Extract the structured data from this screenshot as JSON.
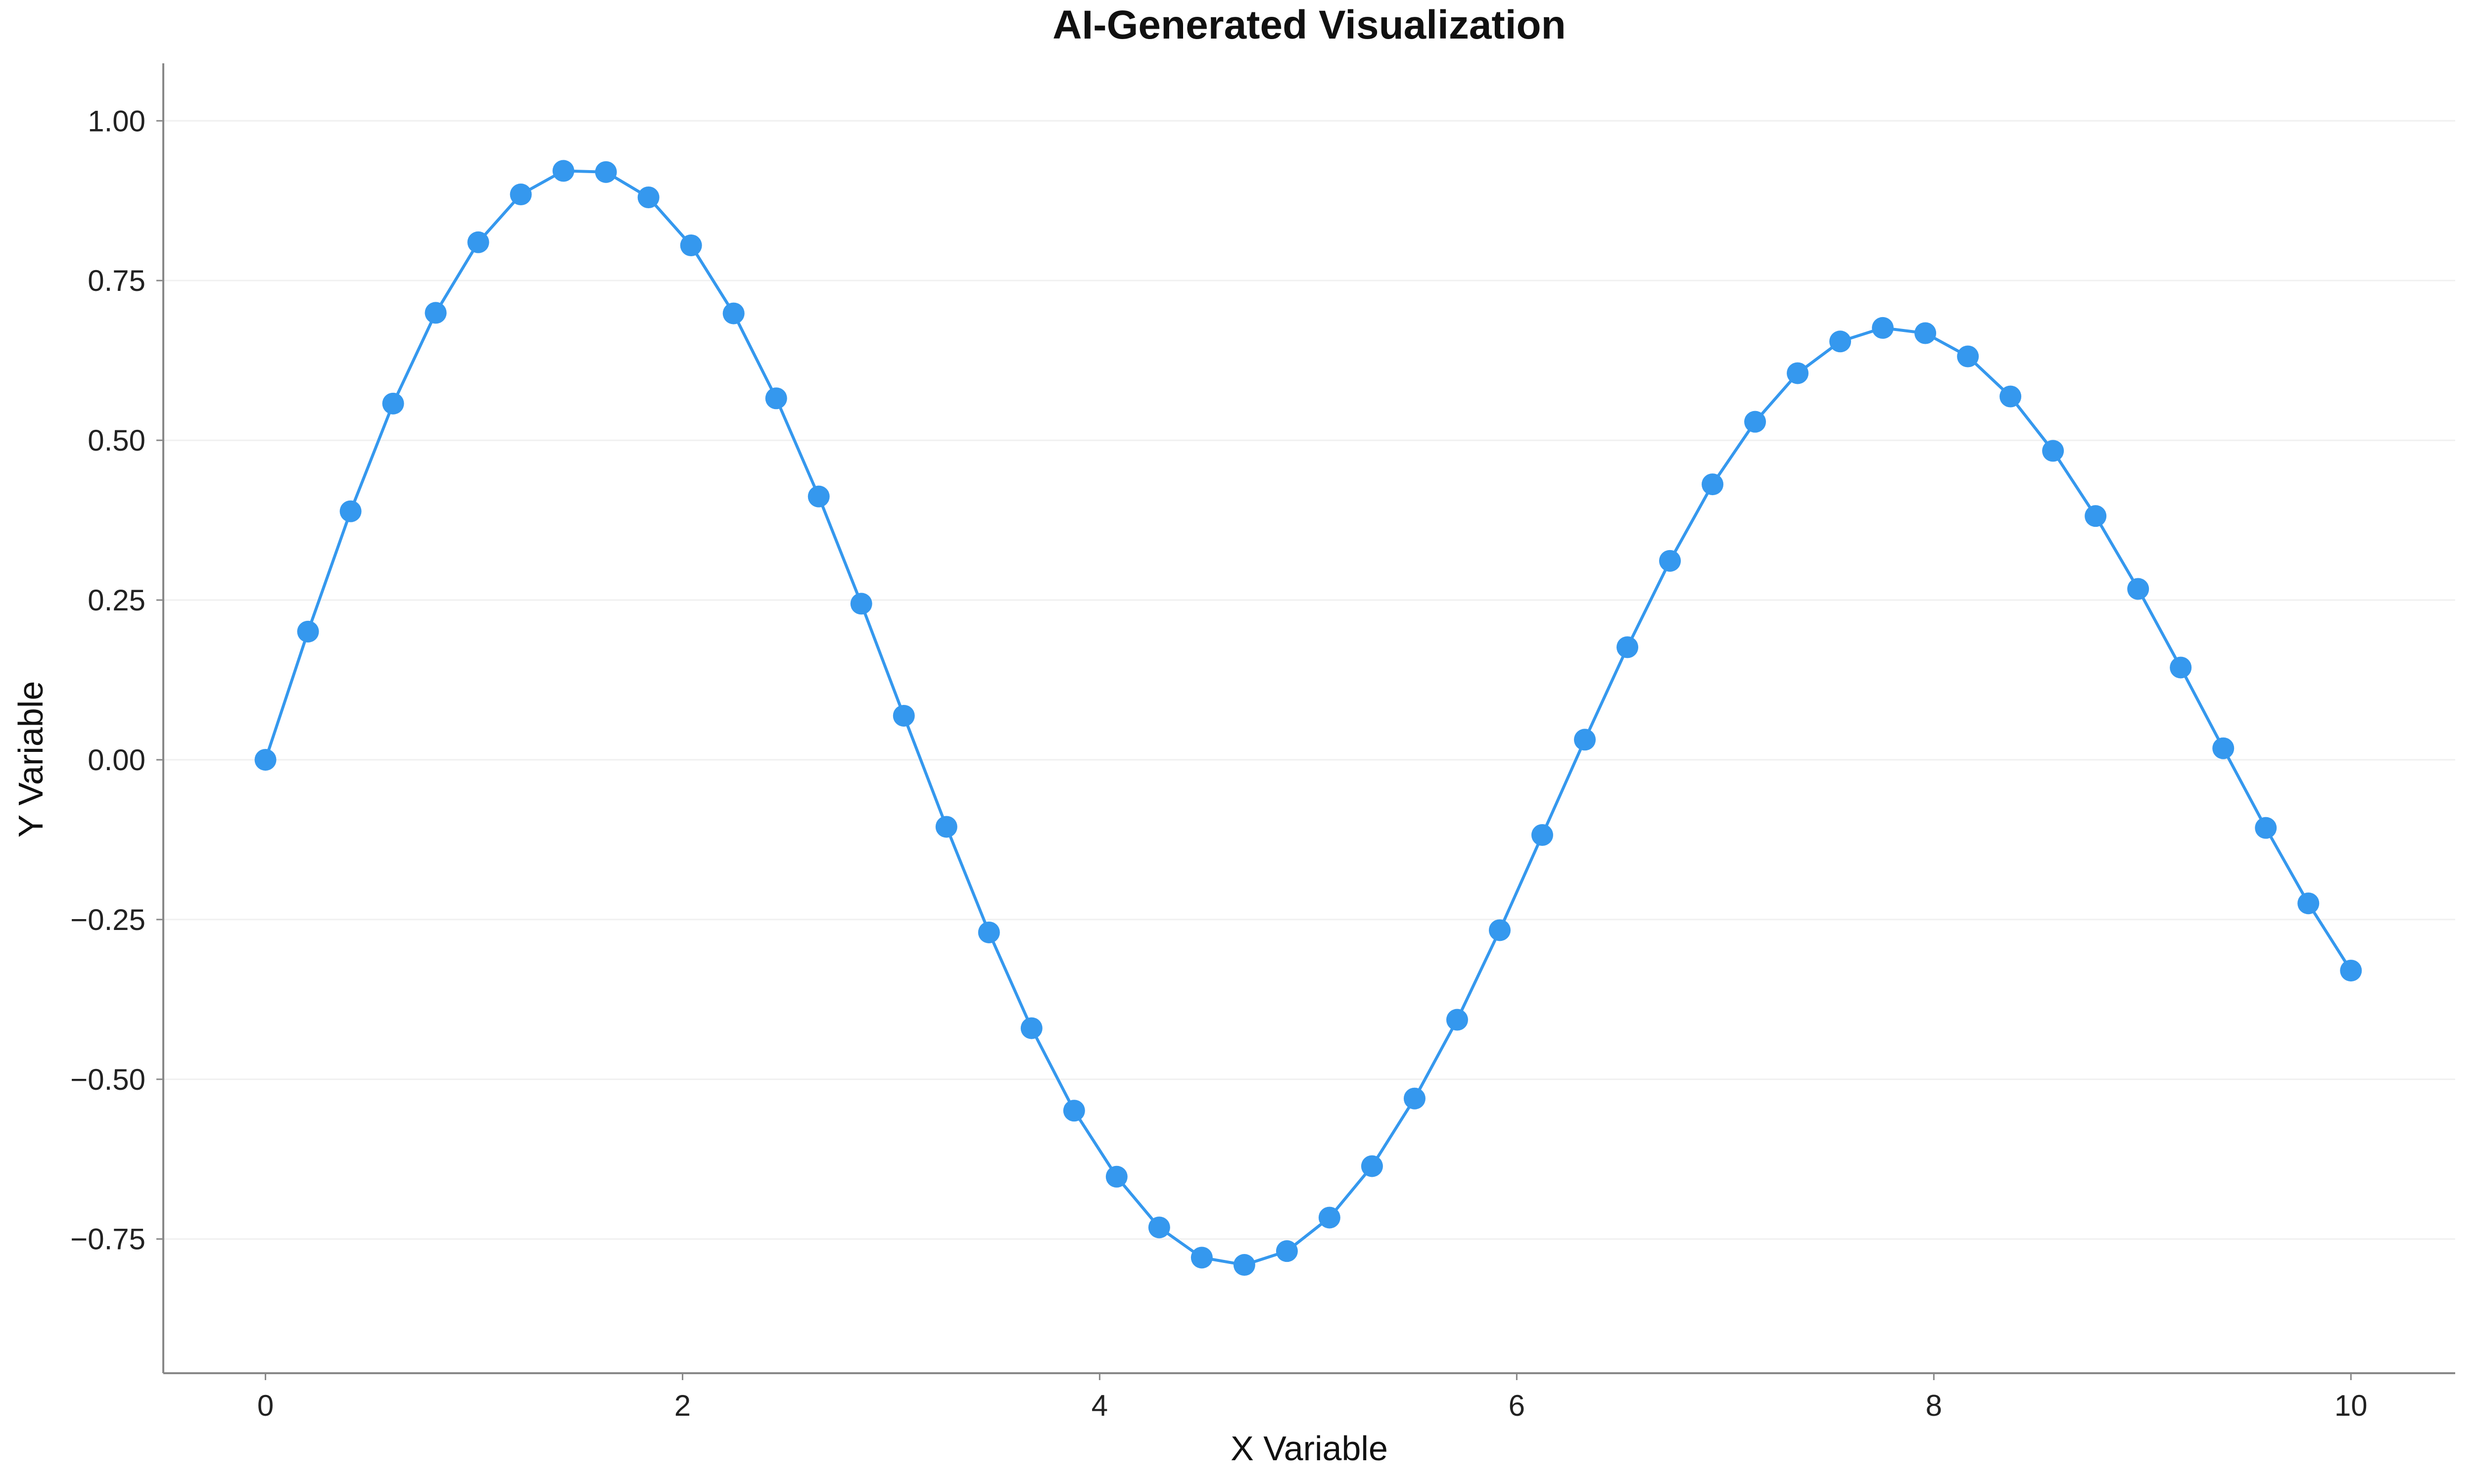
{
  "chart_data": {
    "type": "line",
    "title": "AI-Generated Visualization",
    "xlabel": "X Variable",
    "ylabel": "Y Variable",
    "xlim": [
      -0.49,
      10.5
    ],
    "ylim": [
      -0.96,
      1.09
    ],
    "grid": "horizontal",
    "legend": "none",
    "color": "#3598ee",
    "xticks": [
      0,
      2,
      4,
      6,
      8,
      10
    ],
    "xtick_labels": [
      "0",
      "2",
      "4",
      "6",
      "8",
      "10"
    ],
    "yticks": [
      -0.75,
      -0.5,
      -0.25,
      0,
      0.25,
      0.5,
      0.75,
      1.0
    ],
    "ytick_labels": [
      "−0.75",
      "−0.50",
      "−0.25",
      "0.00",
      "0.25",
      "0.50",
      "0.75",
      "1.00"
    ],
    "series": [
      {
        "name": "Y Variable",
        "x": [
          0,
          0.2041,
          0.4082,
          0.6122,
          0.8163,
          1.0204,
          1.2245,
          1.4286,
          1.6327,
          1.8367,
          2.0408,
          2.2449,
          2.449,
          2.6531,
          2.8571,
          3.0612,
          3.2653,
          3.4694,
          3.6735,
          3.8776,
          4.0816,
          4.2857,
          4.4898,
          4.6939,
          4.898,
          5.102,
          5.3061,
          5.5102,
          5.7143,
          5.9184,
          6.1224,
          6.3265,
          6.5306,
          6.7347,
          6.9388,
          7.1429,
          7.3469,
          7.551,
          7.7551,
          7.9592,
          8.1633,
          8.3673,
          8.5714,
          8.7755,
          8.9796,
          9.1837,
          9.3878,
          9.5918,
          9.7959,
          10
        ],
        "y": [
          0,
          0.2006,
          0.3889,
          0.5575,
          0.6995,
          0.8099,
          0.8848,
          0.9217,
          0.9198,
          0.8802,
          0.8051,
          0.6986,
          0.5657,
          0.4121,
          0.2443,
          0.0689,
          -0.1049,
          -0.2702,
          -0.4201,
          -0.5491,
          -0.6525,
          -0.7319,
          -0.7791,
          -0.7905,
          -0.7689,
          -0.7165,
          -0.636,
          -0.5301,
          -0.4069,
          -0.2667,
          -0.1177,
          0.0315,
          0.1762,
          0.3113,
          0.4311,
          0.529,
          0.605,
          0.6547,
          0.6759,
          0.6677,
          0.6313,
          0.5686,
          0.4835,
          0.3815,
          0.2674,
          0.1444,
          0.018,
          -0.1066,
          -0.2247,
          -0.3299
        ]
      }
    ]
  }
}
